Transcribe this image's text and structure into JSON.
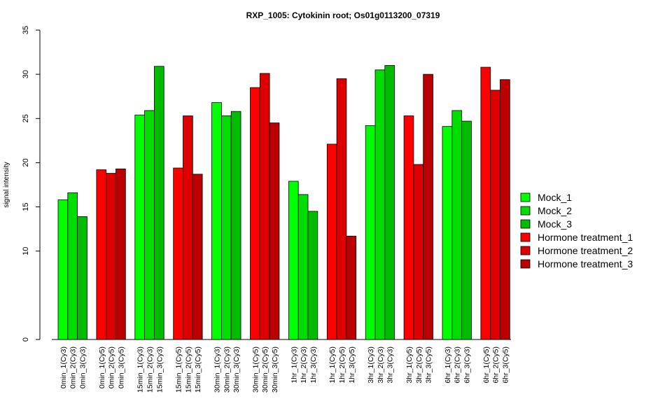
{
  "chart_data": {
    "type": "bar",
    "title": "RXP_1005: Cytokinin root; Os01g0113200_07319",
    "ylabel": "signal intensity",
    "ylim": [
      0,
      35
    ],
    "yticks": [
      0,
      10,
      15,
      20,
      25,
      30,
      35
    ],
    "legend_position": "right",
    "categories": [
      "0min_1(Cy3)",
      "0min_2(Cy3)",
      "0min_3(Cy3)",
      "0min_1(Cy5)",
      "0min_2(Cy5)",
      "0min_3(Cy5)",
      "15min_1(Cy3)",
      "15min_2(Cy3)",
      "15min_3(Cy3)",
      "15min_1(Cy5)",
      "15min_2(Cy5)",
      "15min_3(Cy5)",
      "30min_1(Cy3)",
      "30min_2(Cy3)",
      "30min_3(Cy3)",
      "30min_1(Cy5)",
      "30min_2(Cy5)",
      "30min_3(Cy5)",
      "1hr_1(Cy3)",
      "1hr_2(Cy3)",
      "1hr_3(Cy3)",
      "1hr_1(Cy5)",
      "1hr_2(Cy5)",
      "1hr_3(Cy5)",
      "3hr_1(Cy3)",
      "3hr_2(Cy3)",
      "3hr_3(Cy3)",
      "3hr_1(Cy5)",
      "3hr_2(Cy5)",
      "3hr_3(Cy5)",
      "6hr_1(Cy3)",
      "6hr_2(Cy3)",
      "6hr_3(Cy3)",
      "6hr_1(Cy5)",
      "6hr_2(Cy5)",
      "6hr_3(Cy5)"
    ],
    "values": [
      15.8,
      16.6,
      13.9,
      19.2,
      18.8,
      19.3,
      25.4,
      25.9,
      30.9,
      19.4,
      25.3,
      18.7,
      26.8,
      25.3,
      25.8,
      28.5,
      30.1,
      24.5,
      17.9,
      16.4,
      14.5,
      22.1,
      29.5,
      11.7,
      24.2,
      30.5,
      31.0,
      25.3,
      19.8,
      30.0,
      24.1,
      25.9,
      24.7,
      30.8,
      28.2,
      29.4
    ],
    "bar_series_index": [
      0,
      1,
      2,
      3,
      4,
      5,
      0,
      1,
      2,
      3,
      4,
      5,
      0,
      1,
      2,
      3,
      4,
      5,
      0,
      1,
      2,
      3,
      4,
      5,
      0,
      1,
      2,
      3,
      4,
      5,
      0,
      1,
      2,
      3,
      4,
      5
    ],
    "series": [
      {
        "name": "Mock_1",
        "color": "#00ff00"
      },
      {
        "name": "Mock_2",
        "color": "#00dd00"
      },
      {
        "name": "Mock_3",
        "color": "#00bb00"
      },
      {
        "name": "Hormone treatment_1",
        "color": "#ff0000"
      },
      {
        "name": "Hormone treatment_2",
        "color": "#dd0000"
      },
      {
        "name": "Hormone treatment_3",
        "color": "#bb0000"
      }
    ]
  }
}
